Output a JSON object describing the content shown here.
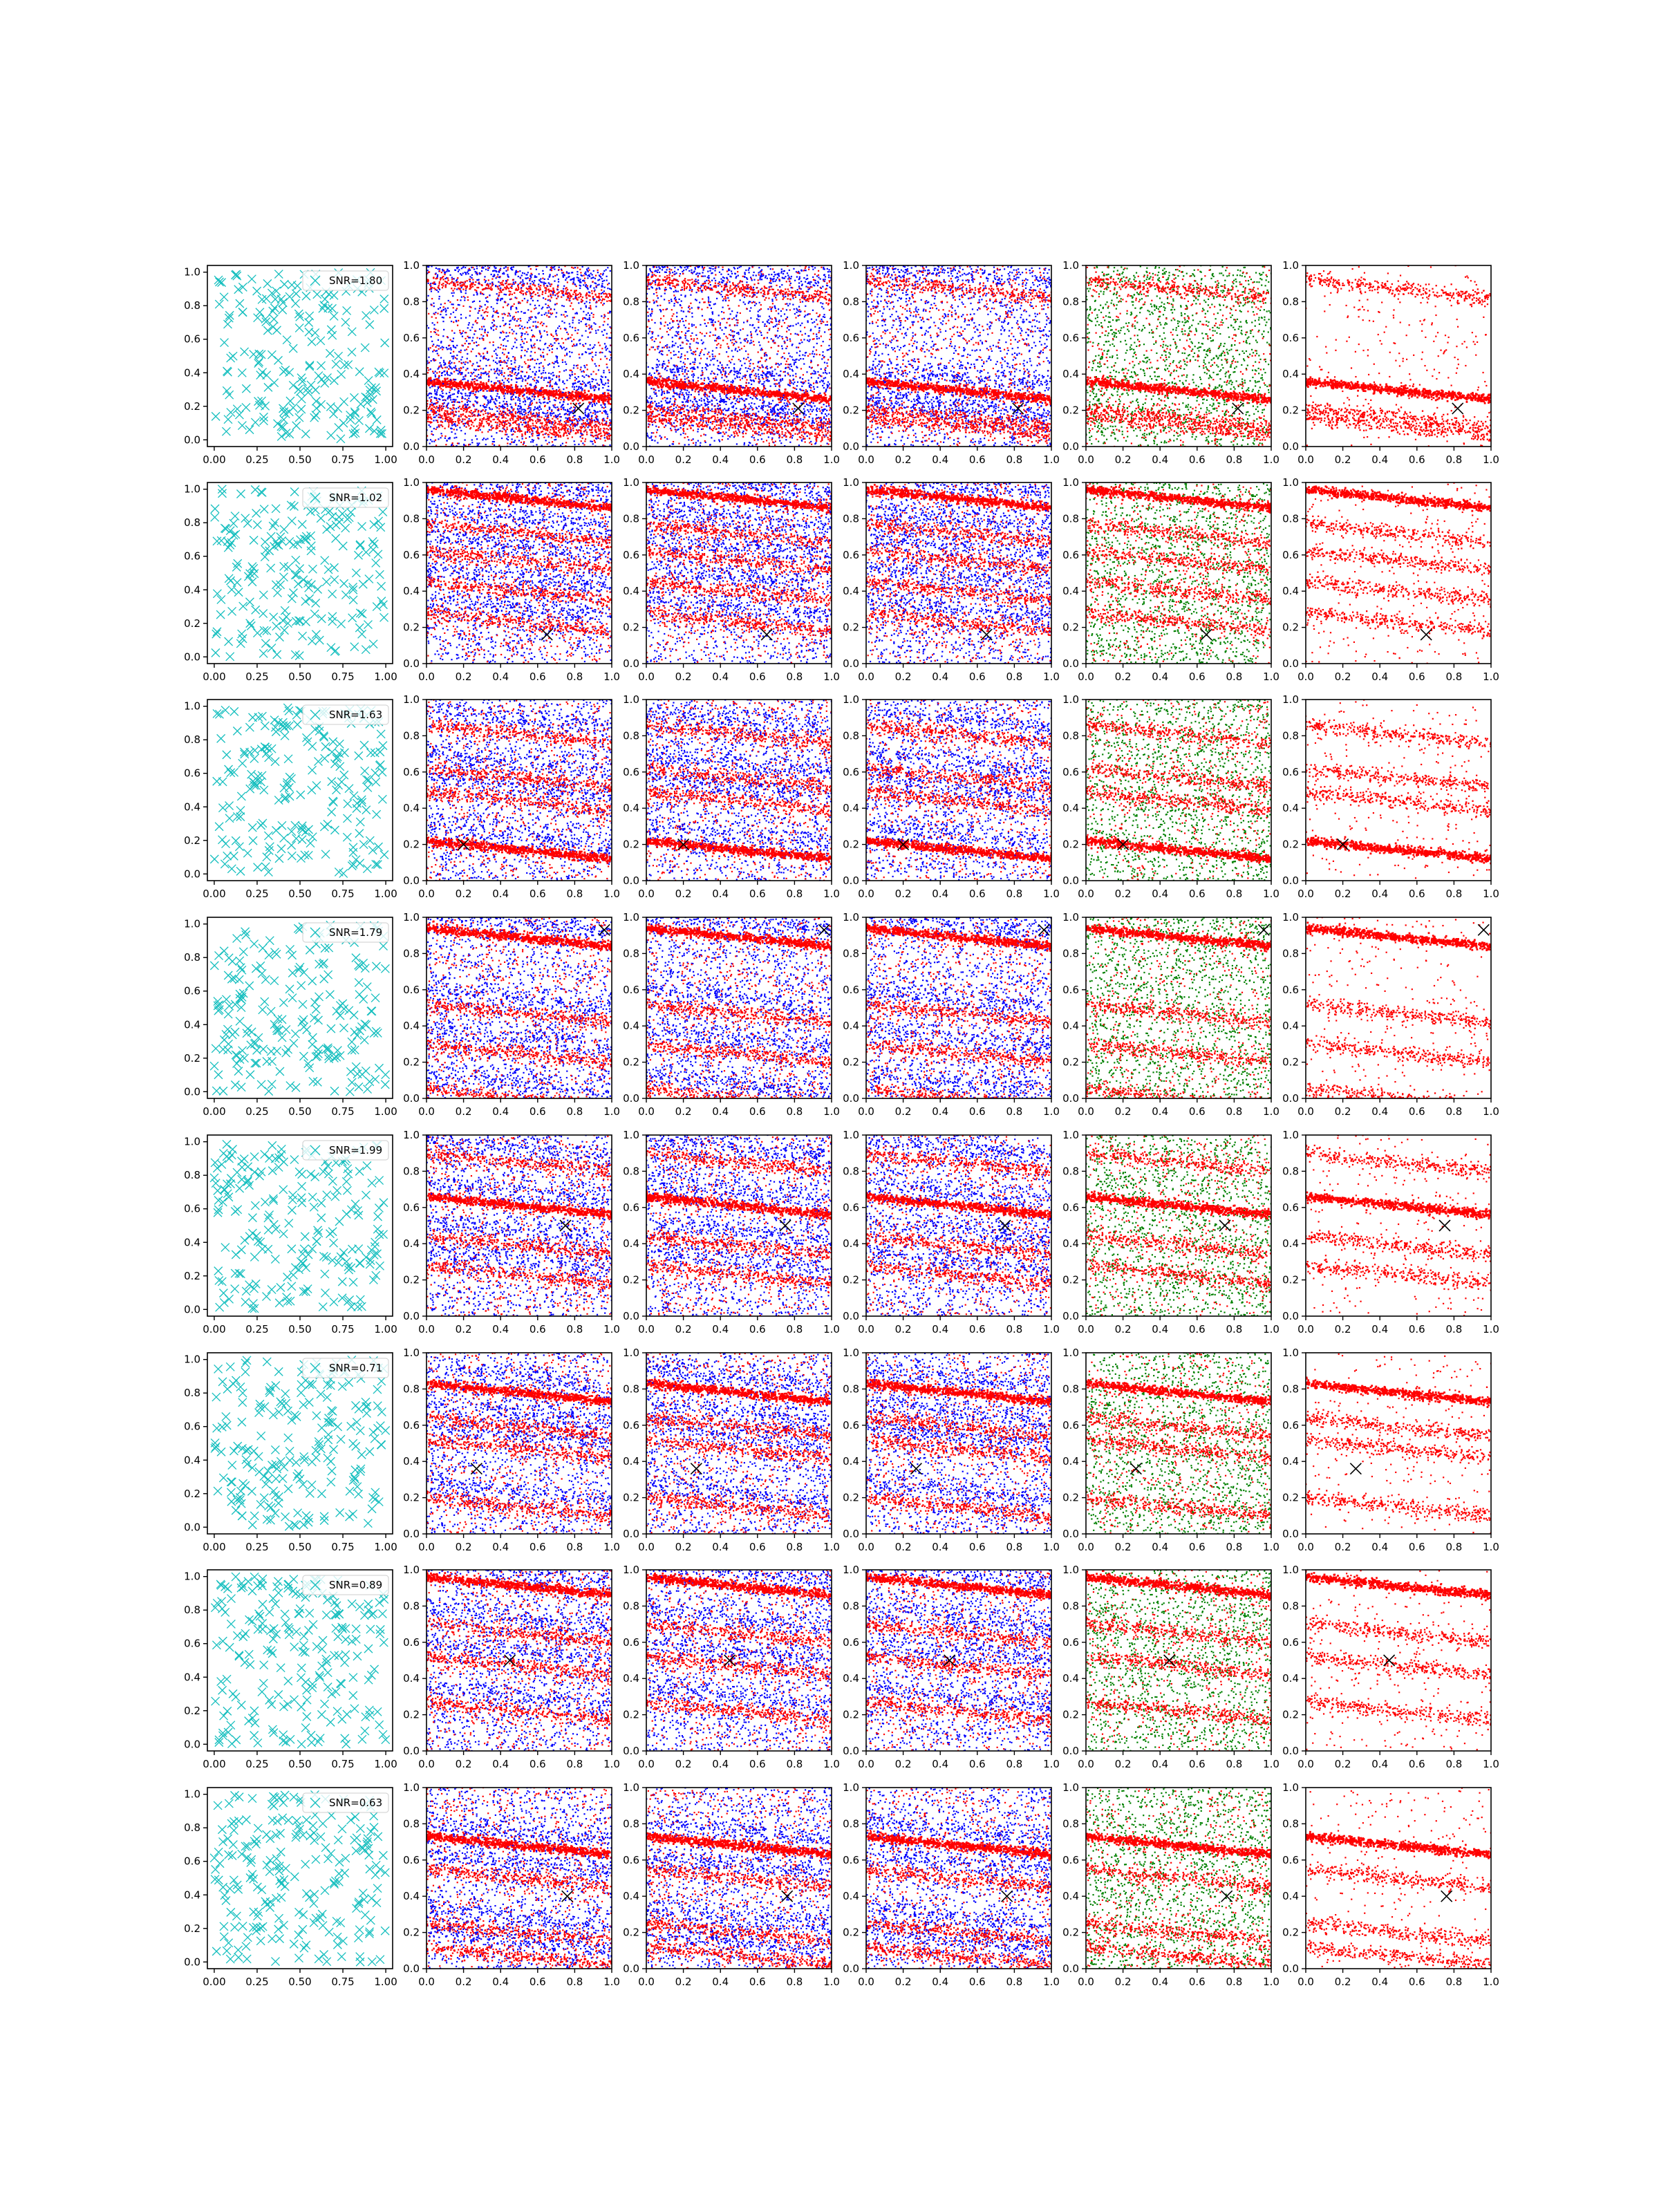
{
  "figure": {
    "description_free": true,
    "columns": 6,
    "rows": 8
  },
  "colors": {
    "noise_marker": "#17bfbf",
    "blue": "#0000ff",
    "red": "#ff0000",
    "green": "#008000",
    "truth_marker": "#000000",
    "axis": "#000000"
  },
  "axes": {
    "first_column": {
      "xlim": [
        -0.04,
        1.04
      ],
      "ylim": [
        -0.04,
        1.04
      ],
      "xticks": [
        0.0,
        0.25,
        0.5,
        0.75,
        1.0
      ],
      "xtick_labels": [
        "0.00",
        "0.25",
        "0.50",
        "0.75",
        "1.00"
      ],
      "yticks": [
        0.0,
        0.2,
        0.4,
        0.6,
        0.8,
        1.0
      ],
      "ytick_labels": [
        "0.0",
        "0.2",
        "0.4",
        "0.6",
        "0.8",
        "1.0"
      ]
    },
    "other_columns": {
      "xlim": [
        0.0,
        1.0
      ],
      "ylim": [
        0.0,
        1.0
      ],
      "xticks": [
        0.0,
        0.2,
        0.4,
        0.6,
        0.8,
        1.0
      ],
      "xtick_labels": [
        "0.0",
        "0.2",
        "0.4",
        "0.6",
        "0.8",
        "1.0"
      ],
      "yticks": [
        0.0,
        0.2,
        0.4,
        0.6,
        0.8,
        1.0
      ],
      "ytick_labels": [
        "0.0",
        "0.2",
        "0.4",
        "0.6",
        "0.8",
        "1.0"
      ]
    }
  },
  "chart_data": [
    {
      "type": "scatter",
      "row": 1,
      "legend": "SNR=1.80",
      "legend_placement": "upper right",
      "truth_point": [
        0.82,
        0.21
      ],
      "tracks": [
        0.36,
        0.16,
        0.92,
        0.21
      ],
      "panels": [
        "noise",
        "blue-red",
        "blue-red",
        "blue-red",
        "green-red",
        "red"
      ]
    },
    {
      "type": "scatter",
      "row": 2,
      "legend": "SNR=1.02",
      "legend_placement": "upper right",
      "truth_point": [
        0.65,
        0.16
      ],
      "tracks": [
        0.96,
        0.77,
        0.28,
        0.62,
        0.45
      ],
      "panels": [
        "noise",
        "blue-red",
        "blue-red",
        "blue-red",
        "green-red",
        "red"
      ]
    },
    {
      "type": "scatter",
      "row": 3,
      "legend": "SNR=1.63",
      "legend_placement": "upper right",
      "truth_point": [
        0.2,
        0.2
      ],
      "tracks": [
        0.22,
        0.49,
        0.86,
        0.62
      ],
      "panels": [
        "noise",
        "blue-red",
        "blue-red",
        "blue-red",
        "green-red",
        "red"
      ]
    },
    {
      "type": "scatter",
      "row": 4,
      "legend": "SNR=1.79",
      "legend_placement": "upper right",
      "truth_point": [
        0.96,
        0.93
      ],
      "tracks": [
        0.94,
        0.52,
        0.05,
        0.3
      ],
      "panels": [
        "noise",
        "blue-red",
        "blue-red",
        "blue-red",
        "green-red",
        "red"
      ]
    },
    {
      "type": "scatter",
      "row": 5,
      "legend": "SNR=1.99",
      "legend_placement": "upper right",
      "truth_point": [
        0.75,
        0.5
      ],
      "tracks": [
        0.66,
        0.28,
        0.9,
        0.44
      ],
      "panels": [
        "noise",
        "blue-red",
        "blue-red",
        "blue-red",
        "green-red",
        "red"
      ]
    },
    {
      "type": "scatter",
      "row": 6,
      "legend": "SNR=0.71",
      "legend_placement": "upper right",
      "truth_point": [
        0.27,
        0.36
      ],
      "tracks": [
        0.83,
        0.52,
        0.2,
        0.64
      ],
      "panels": [
        "noise",
        "blue-red",
        "blue-red",
        "blue-red",
        "green-red",
        "red"
      ]
    },
    {
      "type": "scatter",
      "row": 7,
      "legend": "SNR=0.89",
      "legend_placement": "upper right",
      "truth_point": [
        0.45,
        0.5
      ],
      "tracks": [
        0.96,
        0.7,
        0.27,
        0.52
      ],
      "panels": [
        "noise",
        "blue-red",
        "blue-red",
        "blue-red",
        "green-red",
        "red"
      ]
    },
    {
      "type": "scatter",
      "row": 8,
      "legend": "SNR=0.63",
      "legend_placement": "upper right",
      "truth_point": [
        0.76,
        0.4
      ],
      "tracks": [
        0.73,
        0.25,
        0.12,
        0.55
      ],
      "panels": [
        "noise",
        "blue-red",
        "blue-red",
        "blue-red",
        "green-red",
        "red"
      ]
    }
  ]
}
